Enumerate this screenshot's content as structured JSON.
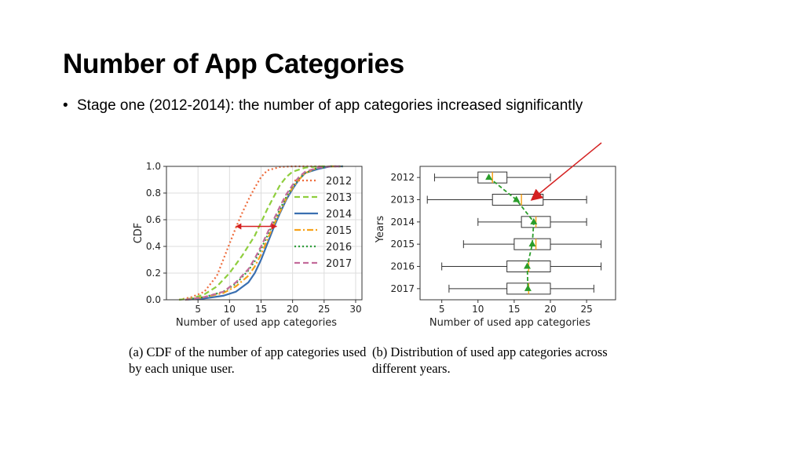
{
  "slide": {
    "title": "Number of App Categories",
    "bullet": "Stage one (2012-2014): the number of app categories increased significantly",
    "bullet_marker": "•"
  },
  "colors": {
    "2012": "#ee6b3b",
    "2013": "#8fce3e",
    "2014": "#3a6fb0",
    "2015": "#f7a21b",
    "2016": "#2e9e3a",
    "2017": "#c36b9b",
    "arrow": "#d42020",
    "mean_line": "#2a9d2a",
    "median": "#f7a21b"
  },
  "chart_data": [
    {
      "type": "line",
      "caption": "(a) CDF of the number of app categories used by each unique user.",
      "xlabel": "Number of used app categories",
      "ylabel": "CDF",
      "xlim": [
        0,
        31
      ],
      "ylim": [
        0,
        1.0
      ],
      "xticks": [
        5,
        10,
        15,
        20,
        25,
        30
      ],
      "yticks": [
        0.0,
        0.2,
        0.4,
        0.6,
        0.8,
        1.0
      ],
      "ytick_labels": [
        "0.0",
        "0.2",
        "0.4",
        "0.6",
        "0.8",
        "1.0"
      ],
      "grid": true,
      "legend": "upper-right",
      "series": [
        {
          "name": "2012",
          "style": "dotted",
          "x": [
            2,
            4,
            6,
            8,
            9,
            10,
            11,
            12,
            13,
            14,
            15,
            16,
            18,
            20,
            22,
            25
          ],
          "y": [
            0,
            0.02,
            0.06,
            0.18,
            0.3,
            0.42,
            0.54,
            0.65,
            0.75,
            0.84,
            0.92,
            0.97,
            0.995,
            1.0,
            1.0,
            1.0
          ]
        },
        {
          "name": "2013",
          "style": "dashed",
          "x": [
            2,
            4,
            6,
            8,
            10,
            12,
            14,
            15,
            16,
            17,
            18,
            19,
            20,
            22,
            24,
            27
          ],
          "y": [
            0,
            0.01,
            0.04,
            0.1,
            0.2,
            0.33,
            0.48,
            0.58,
            0.68,
            0.77,
            0.86,
            0.92,
            0.96,
            0.99,
            1.0,
            1.0
          ]
        },
        {
          "name": "2014",
          "style": "solid",
          "x": [
            3,
            6,
            9,
            11,
            13,
            14,
            15,
            16,
            17,
            18,
            19,
            20,
            21,
            22,
            24,
            26,
            28
          ],
          "y": [
            0,
            0.01,
            0.03,
            0.06,
            0.13,
            0.2,
            0.3,
            0.42,
            0.54,
            0.65,
            0.75,
            0.83,
            0.9,
            0.95,
            0.98,
            1.0,
            1.0
          ]
        },
        {
          "name": "2015",
          "style": "dashdot",
          "x": [
            3,
            6,
            9,
            11,
            13,
            14,
            15,
            16,
            17,
            18,
            19,
            20,
            21,
            22,
            24,
            26,
            28
          ],
          "y": [
            0,
            0.02,
            0.05,
            0.1,
            0.18,
            0.25,
            0.34,
            0.45,
            0.56,
            0.66,
            0.76,
            0.84,
            0.9,
            0.95,
            0.99,
            1.0,
            1.0
          ]
        },
        {
          "name": "2016",
          "style": "dotted",
          "x": [
            3,
            6,
            9,
            11,
            13,
            14,
            15,
            16,
            17,
            18,
            19,
            20,
            21,
            22,
            24,
            26,
            28
          ],
          "y": [
            0,
            0.02,
            0.06,
            0.12,
            0.22,
            0.29,
            0.38,
            0.48,
            0.58,
            0.68,
            0.77,
            0.85,
            0.91,
            0.95,
            0.99,
            1.0,
            1.0
          ]
        },
        {
          "name": "2017",
          "style": "dashed",
          "x": [
            3,
            6,
            9,
            11,
            13,
            14,
            15,
            16,
            17,
            18,
            19,
            20,
            21,
            22,
            24,
            26,
            28
          ],
          "y": [
            0,
            0.02,
            0.06,
            0.13,
            0.23,
            0.31,
            0.4,
            0.5,
            0.6,
            0.7,
            0.79,
            0.86,
            0.92,
            0.96,
            0.99,
            1.0,
            1.0
          ]
        }
      ],
      "annotations": [
        {
          "type": "double-arrow",
          "x_from": 11,
          "x_to": 17.5,
          "y": 0.55
        }
      ]
    },
    {
      "type": "boxplot",
      "caption": "(b) Distribution of used app categories across different years.",
      "xlabel": "Number of used app categories",
      "ylabel": "Years",
      "xlim": [
        2,
        29
      ],
      "xticks": [
        5,
        10,
        15,
        20,
        25
      ],
      "categories": [
        "2012",
        "2013",
        "2014",
        "2015",
        "2016",
        "2017"
      ],
      "boxes": [
        {
          "year": "2012",
          "whislo": 4,
          "q1": 10,
          "med": 12,
          "q3": 14,
          "whishi": 20,
          "mean": 11.5
        },
        {
          "year": "2013",
          "whislo": 3,
          "q1": 12,
          "med": 16,
          "q3": 19,
          "whishi": 25,
          "mean": 15.3
        },
        {
          "year": "2014",
          "whislo": 10,
          "q1": 16,
          "med": 18,
          "q3": 20,
          "whishi": 25,
          "mean": 17.7
        },
        {
          "year": "2015",
          "whislo": 8,
          "q1": 15,
          "med": 18,
          "q3": 20,
          "whishi": 27,
          "mean": 17.5
        },
        {
          "year": "2016",
          "whislo": 5,
          "q1": 14,
          "med": 17,
          "q3": 20,
          "whishi": 27,
          "mean": 16.8
        },
        {
          "year": "2017",
          "whislo": 6,
          "q1": 14,
          "med": 17,
          "q3": 20,
          "whishi": 26,
          "mean": 16.9
        }
      ],
      "mean_line_style": "dashed"
    }
  ]
}
